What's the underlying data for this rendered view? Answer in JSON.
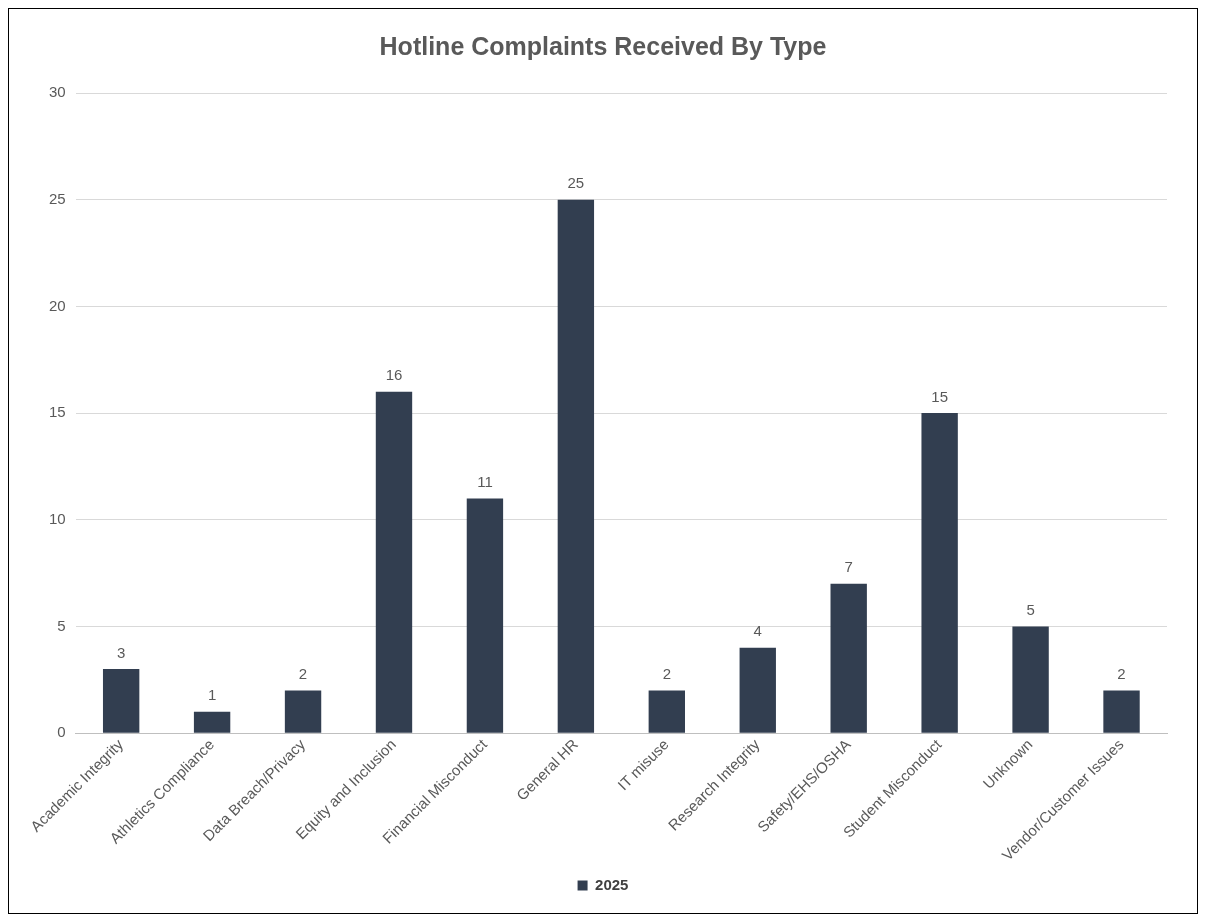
{
  "chart_data": {
    "type": "bar",
    "title": "Hotline Complaints Received By Type",
    "categories": [
      "Academic Integrity",
      "Athletics Compliance",
      "Data Breach/Privacy",
      "Equity and Inclusion",
      "Financial Misconduct",
      "General HR",
      "IT misuse",
      "Research Integrity",
      "Safety/EHS/OSHA",
      "Student Misconduct",
      "Unknown",
      "Vendor/Customer Issues"
    ],
    "series": [
      {
        "name": "2025",
        "color": "#323e50",
        "values": [
          3,
          1,
          2,
          16,
          11,
          25,
          2,
          4,
          7,
          15,
          5,
          2
        ]
      }
    ],
    "ylim": [
      0,
      30
    ],
    "yticks": [
      0,
      5,
      10,
      15,
      20,
      25,
      30
    ],
    "grid": "y",
    "legend": "bottom",
    "data_labels": true
  }
}
